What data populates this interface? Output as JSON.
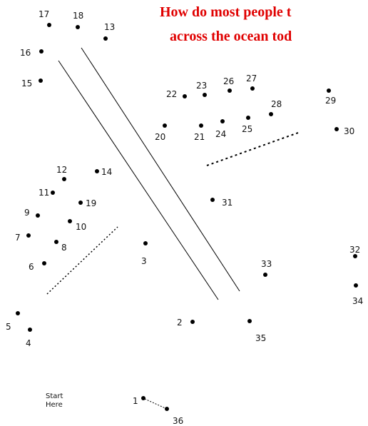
{
  "title_line1": "How do most people t",
  "title_line2": "across the ocean tod",
  "title_color": "#e00000",
  "start_label_line1": "Start",
  "start_label_line2": "Here",
  "dots": [
    {
      "label": "1"
    },
    {
      "label": "2"
    },
    {
      "label": "3"
    },
    {
      "label": "4"
    },
    {
      "label": "5"
    },
    {
      "label": "6"
    },
    {
      "label": "7"
    },
    {
      "label": "8"
    },
    {
      "label": "9"
    },
    {
      "label": "10"
    },
    {
      "label": "11"
    },
    {
      "label": "12"
    },
    {
      "label": "13"
    },
    {
      "label": "14"
    },
    {
      "label": "15"
    },
    {
      "label": "16"
    },
    {
      "label": "17"
    },
    {
      "label": "18"
    },
    {
      "label": "19"
    },
    {
      "label": "20"
    },
    {
      "label": "21"
    },
    {
      "label": "22"
    },
    {
      "label": "23"
    },
    {
      "label": "24"
    },
    {
      "label": "25"
    },
    {
      "label": "26"
    },
    {
      "label": "27"
    },
    {
      "label": "28"
    },
    {
      "label": "29"
    },
    {
      "label": "30"
    },
    {
      "label": "31"
    },
    {
      "label": "32"
    },
    {
      "label": "33"
    },
    {
      "label": "34"
    },
    {
      "label": "35"
    },
    {
      "label": "36"
    }
  ]
}
